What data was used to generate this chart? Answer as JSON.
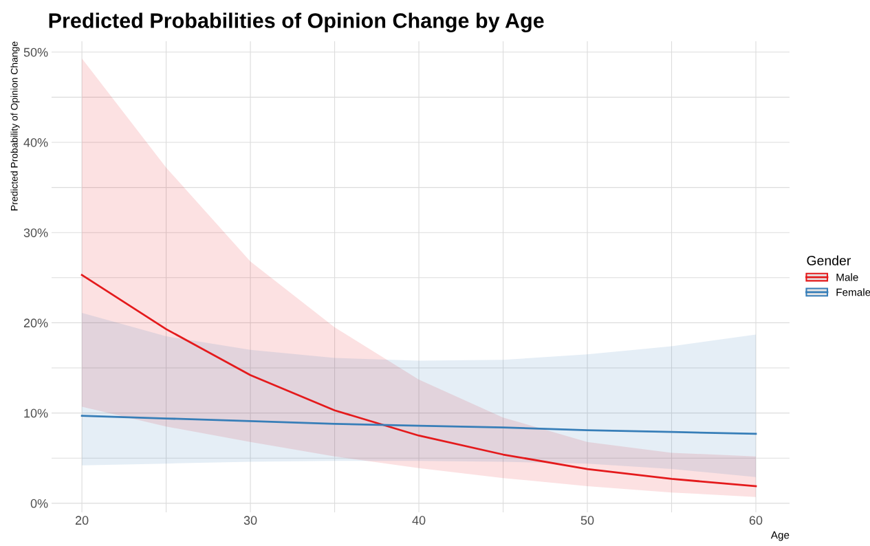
{
  "chart_data": {
    "type": "line",
    "title": "Predicted Probabilities of Opinion Change by Age",
    "xlabel": "Age",
    "ylabel": "Predicted Probability of Opinion Change",
    "legend_title": "Gender",
    "x": [
      20,
      25,
      30,
      35,
      40,
      45,
      50,
      55,
      60
    ],
    "series": [
      {
        "name": "Male",
        "color": "#e41a1c",
        "values": [
          25.3,
          19.3,
          14.2,
          10.3,
          7.5,
          5.4,
          3.8,
          2.7,
          1.9
        ],
        "lower": [
          10.7,
          8.5,
          6.8,
          5.2,
          3.9,
          2.8,
          1.9,
          1.2,
          0.7
        ],
        "upper": [
          49.3,
          37.2,
          26.8,
          19.5,
          13.7,
          9.5,
          6.8,
          5.6,
          5.2
        ]
      },
      {
        "name": "Female",
        "color": "#377eb8",
        "values": [
          9.7,
          9.4,
          9.1,
          8.8,
          8.6,
          8.4,
          8.1,
          7.9,
          7.7
        ],
        "lower": [
          4.2,
          4.4,
          4.6,
          4.7,
          4.7,
          4.6,
          4.4,
          3.8,
          2.9
        ],
        "upper": [
          21.1,
          18.5,
          17.0,
          16.1,
          15.8,
          15.9,
          16.5,
          17.4,
          18.7
        ]
      }
    ],
    "xlim": [
      18.2,
      62
    ],
    "ylim": [
      -1,
      51.2
    ],
    "xticks": [
      20,
      {
        "value": 25,
        "label": null
      },
      30,
      {
        "value": 35,
        "label": null
      },
      40,
      {
        "value": 45,
        "label": null
      },
      50,
      {
        "value": 55,
        "label": null
      },
      60
    ],
    "yticks": [
      {
        "value": 0,
        "label": "0%"
      },
      {
        "value": 5,
        "label": null
      },
      {
        "value": 10,
        "label": "10%"
      },
      {
        "value": 15,
        "label": null
      },
      {
        "value": 20,
        "label": "20%"
      },
      {
        "value": 25,
        "label": null
      },
      {
        "value": 30,
        "label": "30%"
      },
      {
        "value": 35,
        "label": null
      },
      {
        "value": 40,
        "label": "40%"
      },
      {
        "value": 45,
        "label": null
      },
      {
        "value": 50,
        "label": "50%"
      }
    ],
    "grid": true,
    "legend": "right"
  }
}
